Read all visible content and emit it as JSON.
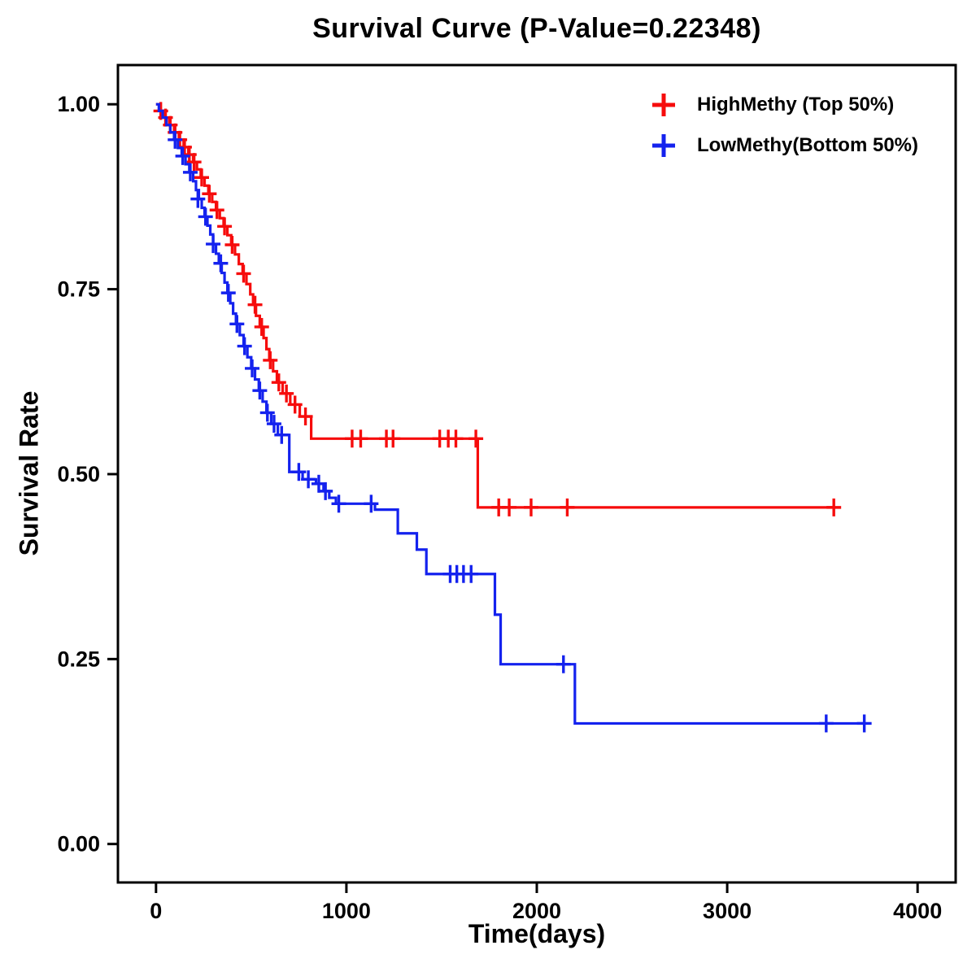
{
  "title": "Survival Curve (P-Value=0.22348)",
  "chart_data": {
    "type": "line",
    "subtype": "kaplan-meier-step-function",
    "title": "Survival Curve (P-Value=0.22348)",
    "p_value": "0.22348",
    "xlabel": "Time(days)",
    "ylabel": "Survival Rate",
    "xlim": [
      -200,
      4200
    ],
    "ylim": [
      -0.052,
      1.053
    ],
    "xticks": [
      0,
      1000,
      2000,
      3000,
      4000
    ],
    "yticks": [
      0.0,
      0.25,
      0.5,
      0.75,
      1.0
    ],
    "grid": false,
    "legend_position": "top-right",
    "axis_color": "#000000",
    "series": [
      {
        "name": "HighMethy (Top 50%)",
        "color": "#f60c0c",
        "steps": [
          [
            0,
            1.0
          ],
          [
            20,
            0.991
          ],
          [
            45,
            0.982
          ],
          [
            70,
            0.972
          ],
          [
            95,
            0.962
          ],
          [
            120,
            0.952
          ],
          [
            145,
            0.942
          ],
          [
            170,
            0.932
          ],
          [
            195,
            0.922
          ],
          [
            215,
            0.912
          ],
          [
            235,
            0.901
          ],
          [
            255,
            0.89
          ],
          [
            275,
            0.879
          ],
          [
            295,
            0.868
          ],
          [
            315,
            0.857
          ],
          [
            335,
            0.846
          ],
          [
            355,
            0.835
          ],
          [
            375,
            0.823
          ],
          [
            395,
            0.81
          ],
          [
            415,
            0.797
          ],
          [
            435,
            0.784
          ],
          [
            455,
            0.771
          ],
          [
            475,
            0.757
          ],
          [
            495,
            0.743
          ],
          [
            510,
            0.729
          ],
          [
            525,
            0.714
          ],
          [
            545,
            0.699
          ],
          [
            565,
            0.684
          ],
          [
            580,
            0.669
          ],
          [
            595,
            0.654
          ],
          [
            615,
            0.639
          ],
          [
            635,
            0.624
          ],
          [
            665,
            0.609
          ],
          [
            705,
            0.594
          ],
          [
            755,
            0.578
          ],
          [
            815,
            0.548
          ],
          [
            1690,
            0.455
          ],
          [
            3560,
            0.455
          ]
        ],
        "censors": [
          [
            25,
            0.991
          ],
          [
            50,
            0.982
          ],
          [
            75,
            0.972
          ],
          [
            100,
            0.962
          ],
          [
            125,
            0.952
          ],
          [
            150,
            0.942
          ],
          [
            175,
            0.932
          ],
          [
            200,
            0.922
          ],
          [
            240,
            0.901
          ],
          [
            280,
            0.879
          ],
          [
            320,
            0.857
          ],
          [
            360,
            0.835
          ],
          [
            400,
            0.81
          ],
          [
            460,
            0.771
          ],
          [
            520,
            0.729
          ],
          [
            555,
            0.699
          ],
          [
            600,
            0.654
          ],
          [
            645,
            0.624
          ],
          [
            685,
            0.609
          ],
          [
            730,
            0.594
          ],
          [
            785,
            0.578
          ],
          [
            1030,
            0.548
          ],
          [
            1075,
            0.548
          ],
          [
            1210,
            0.548
          ],
          [
            1245,
            0.548
          ],
          [
            1490,
            0.548
          ],
          [
            1535,
            0.548
          ],
          [
            1575,
            0.548
          ],
          [
            1680,
            0.548
          ],
          [
            1800,
            0.455
          ],
          [
            1855,
            0.455
          ],
          [
            1970,
            0.455
          ],
          [
            2160,
            0.455
          ],
          [
            3560,
            0.455
          ]
        ]
      },
      {
        "name": "LowMethy(Bottom 50%)",
        "color": "#1422ee",
        "steps": [
          [
            0,
            1.0
          ],
          [
            15,
            0.991
          ],
          [
            35,
            0.982
          ],
          [
            55,
            0.972
          ],
          [
            75,
            0.962
          ],
          [
            95,
            0.952
          ],
          [
            115,
            0.941
          ],
          [
            135,
            0.93
          ],
          [
            155,
            0.919
          ],
          [
            175,
            0.908
          ],
          [
            195,
            0.896
          ],
          [
            210,
            0.884
          ],
          [
            225,
            0.872
          ],
          [
            240,
            0.86
          ],
          [
            255,
            0.848
          ],
          [
            270,
            0.836
          ],
          [
            285,
            0.824
          ],
          [
            300,
            0.811
          ],
          [
            315,
            0.798
          ],
          [
            330,
            0.785
          ],
          [
            345,
            0.772
          ],
          [
            360,
            0.759
          ],
          [
            375,
            0.745
          ],
          [
            390,
            0.731
          ],
          [
            405,
            0.717
          ],
          [
            420,
            0.703
          ],
          [
            440,
            0.688
          ],
          [
            460,
            0.673
          ],
          [
            480,
            0.658
          ],
          [
            500,
            0.643
          ],
          [
            520,
            0.628
          ],
          [
            540,
            0.613
          ],
          [
            560,
            0.598
          ],
          [
            580,
            0.583
          ],
          [
            605,
            0.568
          ],
          [
            640,
            0.553
          ],
          [
            700,
            0.503
          ],
          [
            770,
            0.493
          ],
          [
            840,
            0.487
          ],
          [
            880,
            0.477
          ],
          [
            910,
            0.468
          ],
          [
            945,
            0.46
          ],
          [
            1150,
            0.452
          ],
          [
            1270,
            0.42
          ],
          [
            1370,
            0.398
          ],
          [
            1420,
            0.365
          ],
          [
            1780,
            0.31
          ],
          [
            1810,
            0.243
          ],
          [
            2200,
            0.163
          ],
          [
            3720,
            0.163
          ]
        ],
        "censors": [
          [
            100,
            0.952
          ],
          [
            140,
            0.93
          ],
          [
            180,
            0.908
          ],
          [
            220,
            0.872
          ],
          [
            260,
            0.848
          ],
          [
            300,
            0.811
          ],
          [
            340,
            0.785
          ],
          [
            380,
            0.745
          ],
          [
            425,
            0.703
          ],
          [
            465,
            0.673
          ],
          [
            505,
            0.643
          ],
          [
            545,
            0.613
          ],
          [
            585,
            0.583
          ],
          [
            620,
            0.568
          ],
          [
            660,
            0.553
          ],
          [
            750,
            0.503
          ],
          [
            800,
            0.493
          ],
          [
            855,
            0.487
          ],
          [
            890,
            0.477
          ],
          [
            960,
            0.46
          ],
          [
            1130,
            0.46
          ],
          [
            1545,
            0.365
          ],
          [
            1580,
            0.365
          ],
          [
            1615,
            0.365
          ],
          [
            1655,
            0.365
          ],
          [
            2140,
            0.243
          ],
          [
            3520,
            0.163
          ],
          [
            3720,
            0.163
          ]
        ]
      }
    ]
  }
}
